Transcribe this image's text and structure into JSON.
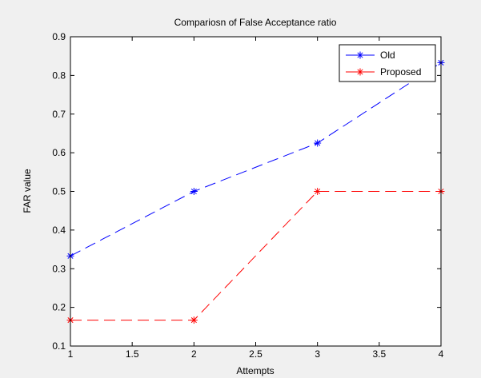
{
  "chart_data": {
    "type": "line",
    "title": "Compariosn of False Acceptance ratio",
    "xlabel": "Attempts",
    "ylabel": "FAR value",
    "x": [
      1,
      2,
      3,
      4
    ],
    "xlim": [
      1,
      4
    ],
    "ylim": [
      0.1,
      0.9
    ],
    "xticks": [
      1,
      1.5,
      2,
      2.5,
      3,
      3.5,
      4
    ],
    "xtick_labels": [
      "1",
      "1.5",
      "2",
      "2.5",
      "3",
      "3.5",
      "4"
    ],
    "yticks": [
      0.1,
      0.2,
      0.3,
      0.4,
      0.5,
      0.6,
      0.7,
      0.8,
      0.9
    ],
    "ytick_labels": [
      "0.1",
      "0.2",
      "0.3",
      "0.4",
      "0.5",
      "0.6",
      "0.7",
      "0.8",
      "0.9"
    ],
    "grid": false,
    "legend_position": "top-right",
    "series": [
      {
        "name": "Old",
        "values": [
          0.333,
          0.5,
          0.625,
          0.833
        ],
        "color": "#0000ff",
        "line_style": "dash",
        "marker": "asterisk"
      },
      {
        "name": "Proposed",
        "values": [
          0.167,
          0.167,
          0.5,
          0.5
        ],
        "color": "#ff0000",
        "line_style": "dash",
        "marker": "asterisk"
      }
    ]
  }
}
